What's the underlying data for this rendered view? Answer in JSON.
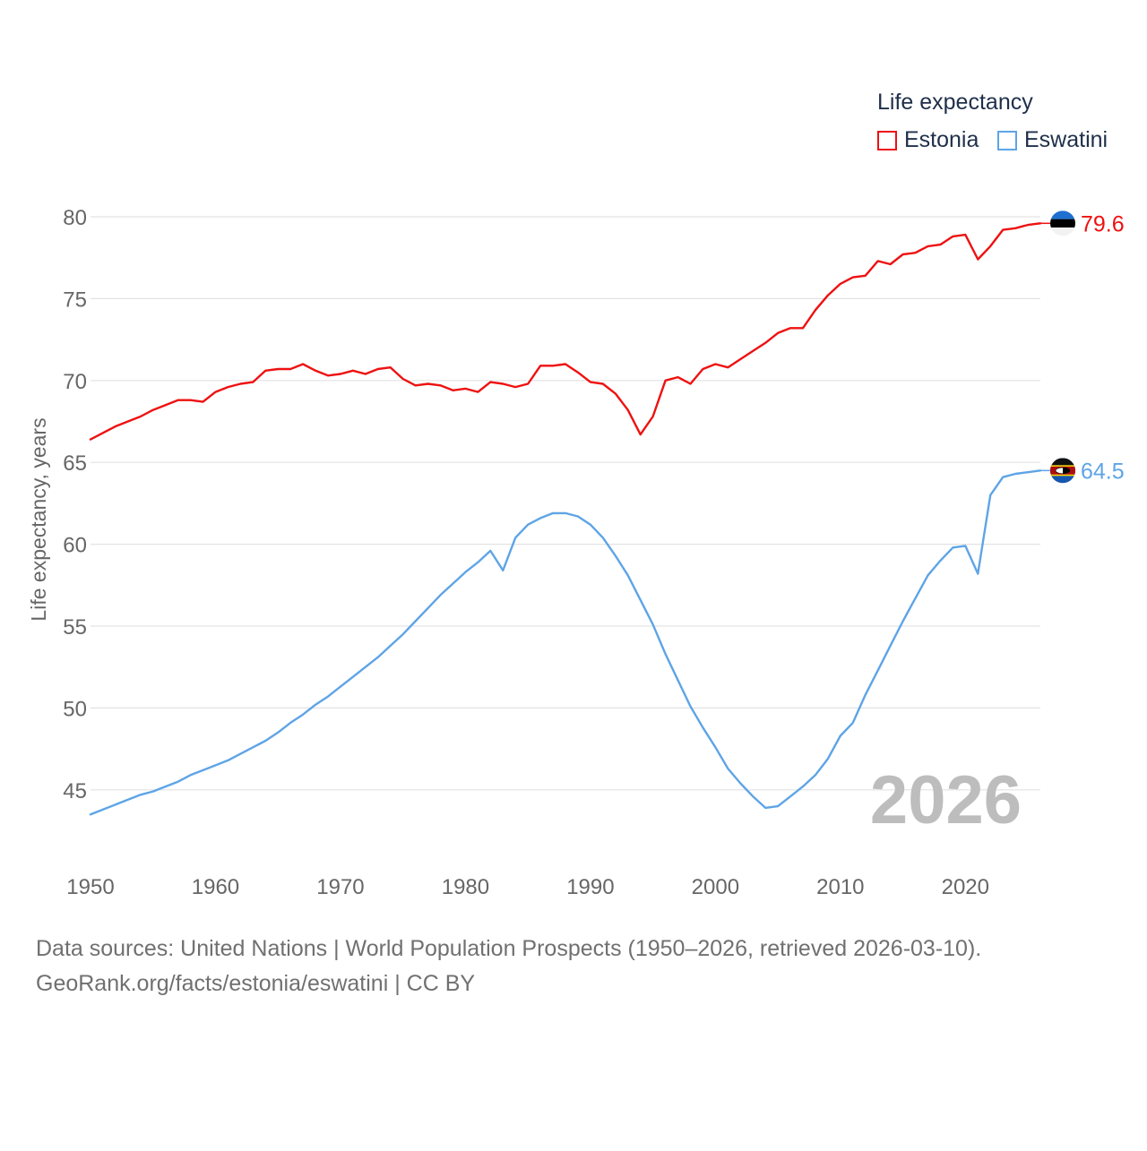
{
  "chart_data": {
    "type": "line",
    "title": "",
    "xlabel": "",
    "ylabel": "Life expectancy, years",
    "xlim": [
      1950,
      2026
    ],
    "ylim": [
      42.5,
      81
    ],
    "yticks": [
      45,
      50,
      55,
      60,
      65,
      70,
      75,
      80
    ],
    "xticks": [
      1950,
      1960,
      1970,
      1980,
      1990,
      2000,
      2010,
      2020
    ],
    "grid": "horizontal",
    "legend": {
      "title": "Life expectancy",
      "placement": "top-right"
    },
    "year_label": "2026",
    "x": [
      1950,
      1951,
      1952,
      1953,
      1954,
      1955,
      1956,
      1957,
      1958,
      1959,
      1960,
      1961,
      1962,
      1963,
      1964,
      1965,
      1966,
      1967,
      1968,
      1969,
      1970,
      1971,
      1972,
      1973,
      1974,
      1975,
      1976,
      1977,
      1978,
      1979,
      1980,
      1981,
      1982,
      1983,
      1984,
      1985,
      1986,
      1987,
      1988,
      1989,
      1990,
      1991,
      1992,
      1993,
      1994,
      1995,
      1996,
      1997,
      1998,
      1999,
      2000,
      2001,
      2002,
      2003,
      2004,
      2005,
      2006,
      2007,
      2008,
      2009,
      2010,
      2011,
      2012,
      2013,
      2014,
      2015,
      2016,
      2017,
      2018,
      2019,
      2020,
      2021,
      2022,
      2023,
      2024,
      2025,
      2026
    ],
    "series": [
      {
        "name": "Estonia",
        "color": "#ee1111",
        "end_label": "79.6",
        "values": [
          66.4,
          66.8,
          67.2,
          67.5,
          67.8,
          68.2,
          68.5,
          68.8,
          68.8,
          68.7,
          69.3,
          69.6,
          69.8,
          69.9,
          70.6,
          70.7,
          70.7,
          71.0,
          70.6,
          70.3,
          70.4,
          70.6,
          70.4,
          70.7,
          70.8,
          70.1,
          69.7,
          69.8,
          69.7,
          69.4,
          69.5,
          69.3,
          69.9,
          69.8,
          69.6,
          69.8,
          70.9,
          70.9,
          71.0,
          70.5,
          69.9,
          69.8,
          69.2,
          68.2,
          66.7,
          67.8,
          70.0,
          70.2,
          69.8,
          70.7,
          71.0,
          70.8,
          71.3,
          71.8,
          72.3,
          72.9,
          73.2,
          73.2,
          74.3,
          75.2,
          75.9,
          76.3,
          76.4,
          77.3,
          77.1,
          77.7,
          77.8,
          78.2,
          78.3,
          78.8,
          78.9,
          77.4,
          78.2,
          79.2,
          79.3,
          79.5,
          79.6
        ]
      },
      {
        "name": "Eswatini",
        "color": "#5ea4e6",
        "end_label": "64.5",
        "values": [
          43.5,
          43.8,
          44.1,
          44.4,
          44.7,
          44.9,
          45.2,
          45.5,
          45.9,
          46.2,
          46.5,
          46.8,
          47.2,
          47.6,
          48.0,
          48.5,
          49.1,
          49.6,
          50.2,
          50.7,
          51.3,
          51.9,
          52.5,
          53.1,
          53.8,
          54.5,
          55.3,
          56.1,
          56.9,
          57.6,
          58.3,
          58.9,
          59.6,
          58.4,
          60.4,
          61.2,
          61.6,
          61.9,
          61.9,
          61.7,
          61.2,
          60.4,
          59.3,
          58.1,
          56.6,
          55.1,
          53.3,
          51.7,
          50.1,
          48.8,
          47.6,
          46.3,
          45.4,
          44.6,
          43.9,
          44.0,
          44.6,
          45.2,
          45.9,
          46.9,
          48.3,
          49.1,
          50.8,
          52.3,
          53.8,
          55.3,
          56.7,
          58.1,
          59.0,
          59.8,
          59.9,
          58.2,
          63.0,
          64.1,
          64.3,
          64.4,
          64.5
        ]
      }
    ]
  },
  "footer": {
    "sources": "Data sources: United Nations | World Population Prospects (1950–2026, retrieved 2026-03-10).",
    "credit": "GeoRank.org/facts/estonia/eswatini | CC BY"
  },
  "colors": {
    "grid": "#e3e3e3",
    "tick_text": "#666666",
    "year_label": "#bdbdbd"
  }
}
